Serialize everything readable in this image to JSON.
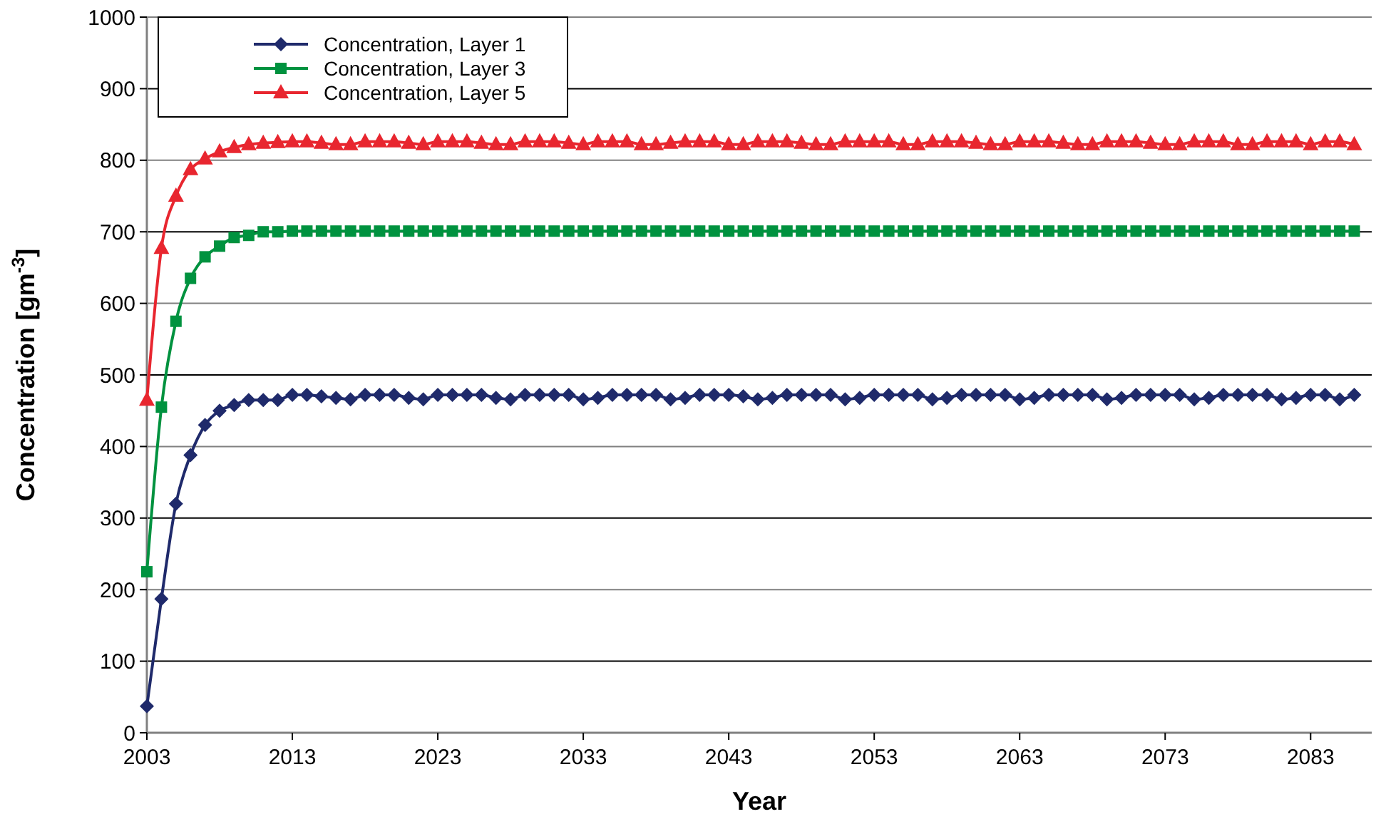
{
  "chart_data": {
    "type": "line",
    "xlabel": "Year",
    "ylabel": "Concentration [gm$^{-3}$]",
    "xlim": [
      2003,
      2087.2
    ],
    "xticks": [
      2003,
      2013,
      2023,
      2033,
      2043,
      2053,
      2063,
      2073,
      2083
    ],
    "ylim": [
      0,
      1000
    ],
    "yticks": [
      0,
      100,
      200,
      300,
      400,
      500,
      600,
      700,
      800,
      900,
      1000
    ],
    "grid": "y",
    "legend": "top left",
    "x": [
      2003,
      2004,
      2005,
      2006,
      2007,
      2008,
      2009,
      2010,
      2011,
      2012,
      2013,
      2014,
      2015,
      2016,
      2017,
      2018,
      2019,
      2020,
      2021,
      2022,
      2023,
      2024,
      2025,
      2026,
      2027,
      2028,
      2029,
      2030,
      2031,
      2032,
      2033,
      2034,
      2035,
      2036,
      2037,
      2038,
      2039,
      2040,
      2041,
      2042,
      2043,
      2044,
      2045,
      2046,
      2047,
      2048,
      2049,
      2050,
      2051,
      2052,
      2053,
      2054,
      2055,
      2056,
      2057,
      2058,
      2059,
      2060,
      2061,
      2062,
      2063,
      2064,
      2065,
      2066,
      2067,
      2068,
      2069,
      2070,
      2071,
      2072,
      2073,
      2074,
      2075,
      2076,
      2077,
      2078,
      2079,
      2080,
      2081,
      2082,
      2083,
      2084,
      2085,
      2086
    ],
    "series": [
      {
        "name": "Concentration, Layer 1",
        "color": "#1f2a6b",
        "marker": "diamond",
        "values": [
          37,
          187,
          320,
          388,
          430,
          450,
          458,
          465,
          465,
          465,
          472,
          472,
          470,
          468,
          466,
          472,
          472,
          472,
          468,
          466,
          472,
          472,
          472,
          472,
          468,
          466,
          472,
          472,
          472,
          472,
          466,
          468,
          472,
          472,
          472,
          472,
          466,
          468,
          472,
          472,
          472,
          470,
          466,
          468,
          472,
          472,
          472,
          472,
          466,
          468,
          472,
          472,
          472,
          472,
          466,
          468,
          472,
          472,
          472,
          472,
          466,
          468,
          472,
          472,
          472,
          472,
          466,
          468,
          472,
          472,
          472,
          472,
          466,
          468,
          472,
          472,
          472,
          472,
          466,
          468,
          472,
          472,
          466,
          472
        ]
      },
      {
        "name": "Concentration, Layer 3",
        "color": "#00923f",
        "marker": "square",
        "values": [
          225,
          455,
          575,
          635,
          665,
          680,
          692,
          695,
          700,
          700,
          701,
          701,
          701,
          701,
          701,
          701,
          701,
          701,
          701,
          701,
          701,
          701,
          701,
          701,
          701,
          701,
          701,
          701,
          701,
          701,
          701,
          701,
          701,
          701,
          701,
          701,
          701,
          701,
          701,
          701,
          701,
          701,
          701,
          701,
          701,
          701,
          701,
          701,
          701,
          701,
          701,
          701,
          701,
          701,
          701,
          701,
          701,
          701,
          701,
          701,
          701,
          701,
          701,
          701,
          701,
          701,
          701,
          701,
          701,
          701,
          701,
          701,
          701,
          701,
          701,
          701,
          701,
          701,
          701,
          701,
          701,
          701,
          701,
          701
        ]
      },
      {
        "name": "Concentration, Layer 5",
        "color": "#e8262f",
        "marker": "triangle",
        "values": [
          465,
          677,
          750,
          787,
          802,
          812,
          818,
          822,
          824,
          825,
          826,
          826,
          824,
          822,
          822,
          826,
          826,
          826,
          824,
          822,
          826,
          826,
          826,
          824,
          822,
          822,
          826,
          826,
          826,
          824,
          822,
          826,
          826,
          826,
          822,
          822,
          824,
          826,
          826,
          826,
          822,
          822,
          826,
          826,
          826,
          824,
          822,
          822,
          826,
          826,
          826,
          826,
          822,
          822,
          826,
          826,
          826,
          824,
          822,
          822,
          826,
          826,
          826,
          824,
          822,
          822,
          826,
          826,
          826,
          824,
          822,
          822,
          826,
          826,
          826,
          822,
          822,
          826,
          826,
          826,
          822,
          826,
          826,
          822
        ]
      }
    ]
  }
}
